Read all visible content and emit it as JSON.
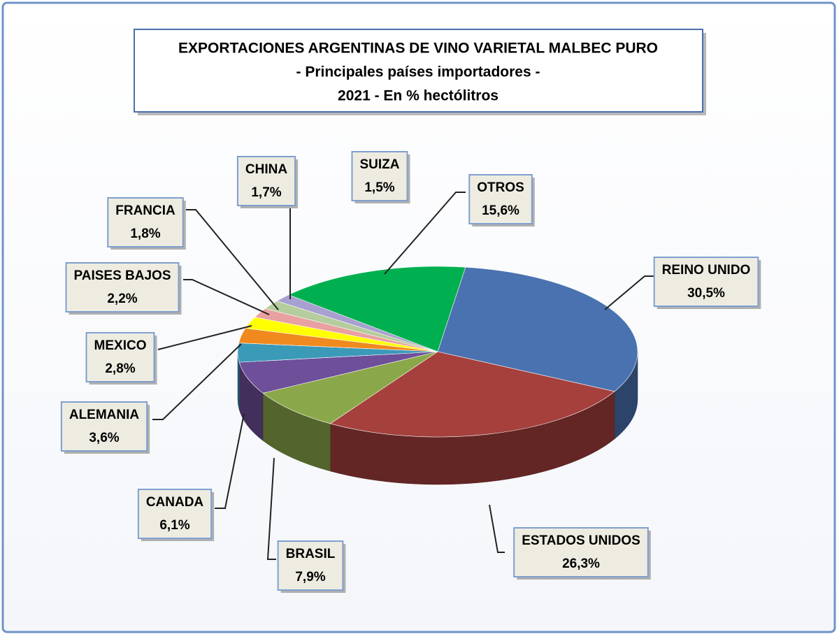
{
  "chart_data": {
    "type": "pie",
    "title": "EXPORTACIONES ARGENTINAS DE VINO VARIETAL MALBEC PURO",
    "subtitle": "- Principales países importadores -",
    "subtitle2": "2021 - En % hectólitros",
    "categories": [
      "REINO UNIDO",
      "ESTADOS UNIDOS",
      "BRASIL",
      "CANADA",
      "ALEMANIA",
      "MEXICO",
      "PAISES BAJOS",
      "FRANCIA",
      "CHINA",
      "SUIZA",
      "OTROS"
    ],
    "values": [
      30.5,
      26.3,
      7.9,
      6.1,
      3.6,
      2.8,
      2.2,
      1.8,
      1.7,
      1.5,
      15.6
    ],
    "value_labels": [
      "30,5%",
      "26,3%",
      "7,9%",
      "6,1%",
      "3,6%",
      "2,8%",
      "2,2%",
      "1,8%",
      "1,7%",
      "1,5%",
      "15,6%"
    ],
    "colors": [
      "#4a72b0",
      "#a5403c",
      "#8aa84a",
      "#6e4f9a",
      "#3b9ab8",
      "#f08a1e",
      "#ffff00",
      "#e8a0a0",
      "#b5cc9c",
      "#a8a0d0",
      "#00b050"
    ]
  }
}
